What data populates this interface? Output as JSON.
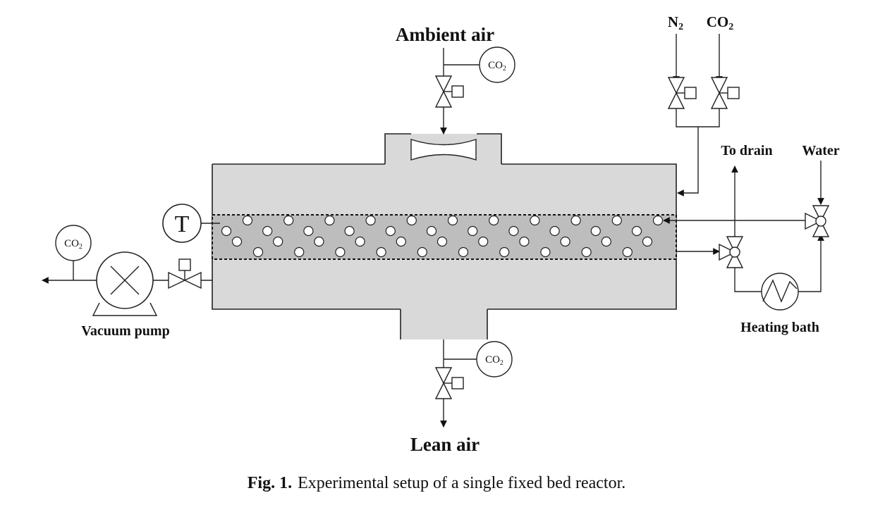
{
  "labels": {
    "ambient_air": "Ambient air",
    "lean_air": "Lean air",
    "vacuum_pump": "Vacuum pump",
    "to_drain": "To drain",
    "water": "Water",
    "heating_bath": "Heating bath",
    "n2": "N",
    "n2_sub": "2",
    "co2_gas": "CO",
    "co2_gas_sub": "2",
    "temperature_sensor": "T"
  },
  "co2_sensor": {
    "text": "CO",
    "sub": "2"
  },
  "caption": {
    "number": "Fig. 1.",
    "text": "Experimental setup of a single fixed bed reactor."
  }
}
